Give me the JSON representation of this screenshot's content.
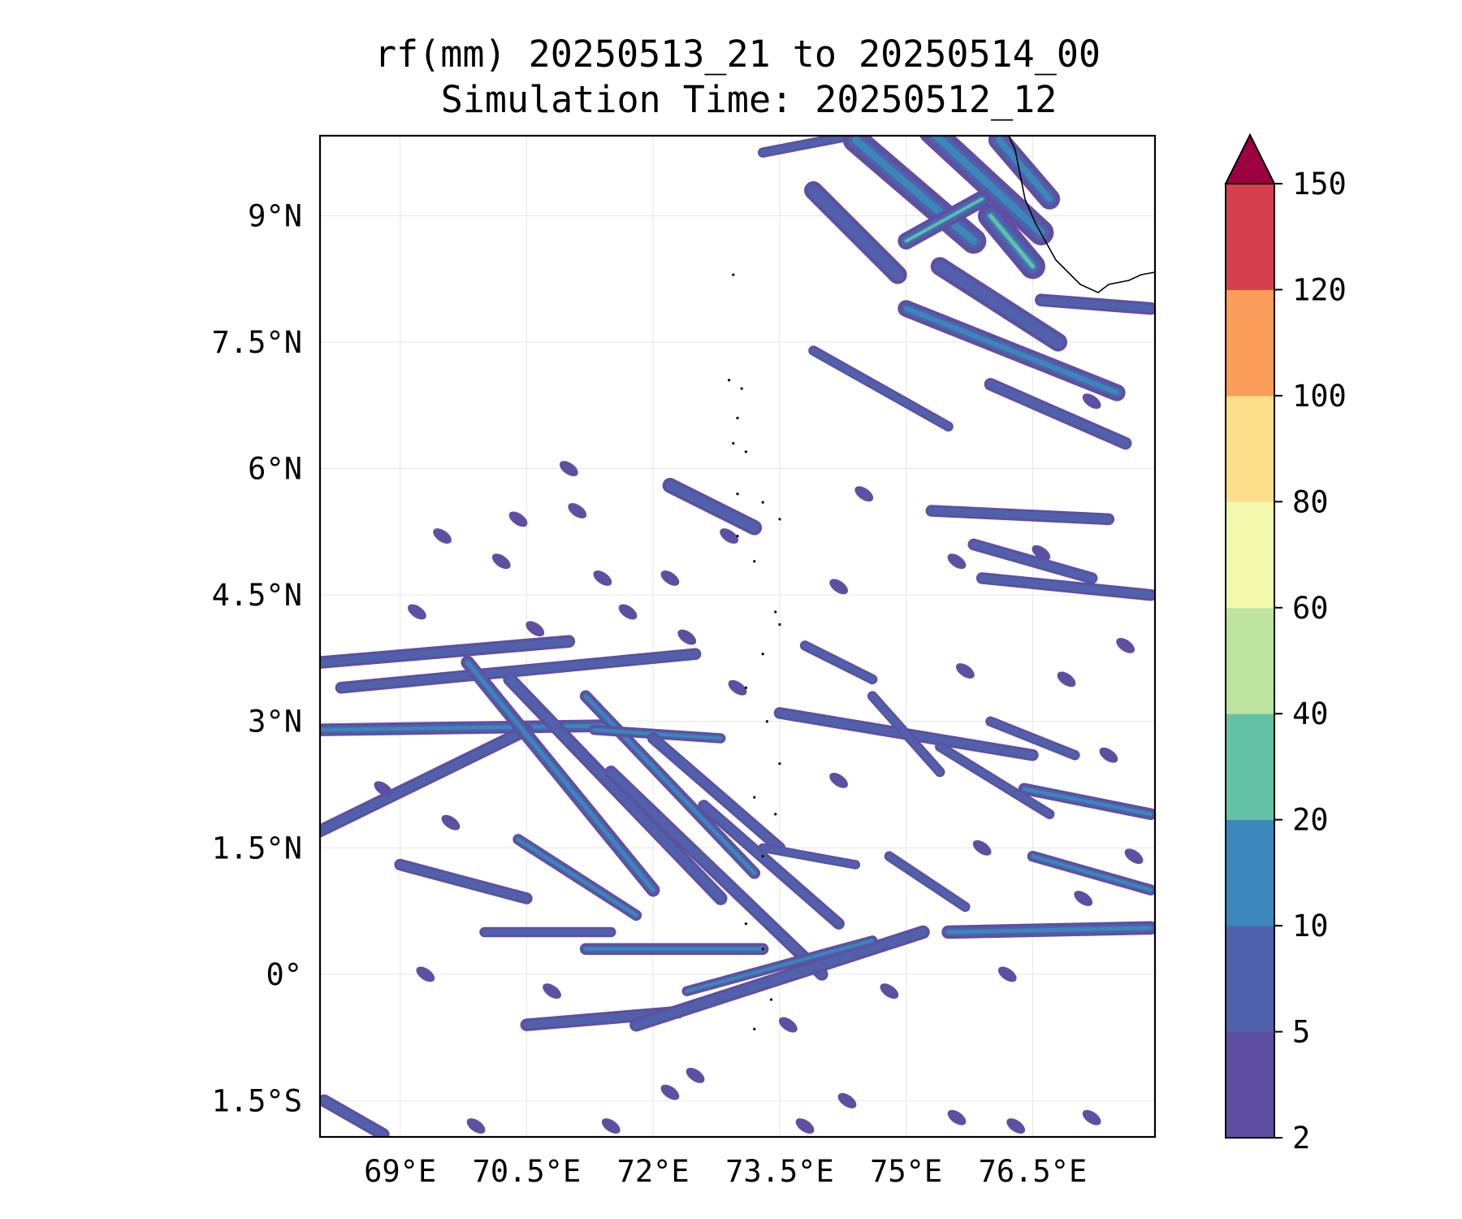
{
  "chart_data": {
    "type": "heatmap",
    "variable": "rf(mm)",
    "title_line1": "rf(mm) 20250513_21 to 20250514_00",
    "title_line2": "Simulation Time: 20250512_12",
    "x_ticks": [
      69,
      70.5,
      72,
      73.5,
      75,
      76.5
    ],
    "x_tick_labels": [
      "69°E",
      "70.5°E",
      "72°E",
      "73.5°E",
      "75°E",
      "76.5°E"
    ],
    "y_ticks": [
      9,
      7.5,
      6,
      4.5,
      3,
      1.5,
      0,
      -1.5
    ],
    "y_tick_labels": [
      "9°N",
      "7.5°N",
      "6°N",
      "4.5°N",
      "3°N",
      "1.5°N",
      "0°",
      "1.5°S"
    ],
    "xlim": [
      68.05,
      77.95
    ],
    "ylim": [
      -1.93,
      9.95
    ],
    "grid": true,
    "colorbar": {
      "levels": [
        2,
        5,
        10,
        20,
        40,
        60,
        80,
        100,
        120,
        150
      ],
      "tick_labels": [
        "2",
        "5",
        "10",
        "20",
        "40",
        "60",
        "80",
        "100",
        "120",
        "150"
      ],
      "colors": [
        "#5e4fa2",
        "#4f61aa",
        "#3b86bb",
        "#65c1a5",
        "#bde4a0",
        "#f3f9ac",
        "#fbdf8b",
        "#f99d58",
        "#d6404e"
      ],
      "extend_color": "#9e0142",
      "extend": "max"
    },
    "rain_bands": [
      {
        "lon1": 73.3,
        "lat1": 9.75,
        "lon2": 74.6,
        "lat2": 10.0,
        "w": 0.12,
        "lvl": 1
      },
      {
        "lon1": 73.9,
        "lat1": 9.3,
        "lon2": 74.9,
        "lat2": 8.3,
        "w": 0.22,
        "lvl": 1
      },
      {
        "lon1": 74.4,
        "lat1": 9.9,
        "lon2": 75.8,
        "lat2": 8.7,
        "w": 0.3,
        "lvl": 2
      },
      {
        "lon1": 75.3,
        "lat1": 10.0,
        "lon2": 76.6,
        "lat2": 8.8,
        "w": 0.3,
        "lvl": 2
      },
      {
        "lon1": 76.0,
        "lat1": 9.0,
        "lon2": 76.5,
        "lat2": 8.4,
        "w": 0.3,
        "lvl": 3
      },
      {
        "lon1": 76.1,
        "lat1": 9.9,
        "lon2": 76.7,
        "lat2": 9.2,
        "w": 0.25,
        "lvl": 2
      },
      {
        "lon1": 75.0,
        "lat1": 8.7,
        "lon2": 75.9,
        "lat2": 9.2,
        "w": 0.2,
        "lvl": 3
      },
      {
        "lon1": 75.4,
        "lat1": 8.4,
        "lon2": 76.8,
        "lat2": 7.5,
        "w": 0.22,
        "lvl": 1
      },
      {
        "lon1": 75.0,
        "lat1": 7.9,
        "lon2": 77.5,
        "lat2": 6.9,
        "w": 0.2,
        "lvl": 2
      },
      {
        "lon1": 76.6,
        "lat1": 8.0,
        "lon2": 77.9,
        "lat2": 7.9,
        "w": 0.15,
        "lvl": 1
      },
      {
        "lon1": 76.0,
        "lat1": 7.0,
        "lon2": 77.6,
        "lat2": 6.3,
        "w": 0.15,
        "lvl": 1
      },
      {
        "lon1": 73.9,
        "lat1": 7.4,
        "lon2": 75.5,
        "lat2": 6.5,
        "w": 0.12,
        "lvl": 1
      },
      {
        "lon1": 72.2,
        "lat1": 5.8,
        "lon2": 73.2,
        "lat2": 5.3,
        "w": 0.18,
        "lvl": 1
      },
      {
        "lon1": 75.3,
        "lat1": 5.5,
        "lon2": 77.4,
        "lat2": 5.4,
        "w": 0.14,
        "lvl": 1
      },
      {
        "lon1": 75.8,
        "lat1": 5.1,
        "lon2": 77.2,
        "lat2": 4.7,
        "w": 0.14,
        "lvl": 1
      },
      {
        "lon1": 75.9,
        "lat1": 4.7,
        "lon2": 77.9,
        "lat2": 4.5,
        "w": 0.14,
        "lvl": 1
      },
      {
        "lon1": 68.05,
        "lat1": 3.7,
        "lon2": 71.0,
        "lat2": 3.95,
        "w": 0.15,
        "lvl": 1
      },
      {
        "lon1": 68.3,
        "lat1": 3.4,
        "lon2": 72.5,
        "lat2": 3.8,
        "w": 0.14,
        "lvl": 1
      },
      {
        "lon1": 68.05,
        "lat1": 2.9,
        "lon2": 71.5,
        "lat2": 2.95,
        "w": 0.15,
        "lvl": 2
      },
      {
        "lon1": 68.05,
        "lat1": 1.7,
        "lon2": 70.5,
        "lat2": 2.9,
        "w": 0.15,
        "lvl": 1
      },
      {
        "lon1": 69.8,
        "lat1": 3.7,
        "lon2": 72.0,
        "lat2": 1.0,
        "w": 0.16,
        "lvl": 2
      },
      {
        "lon1": 70.3,
        "lat1": 3.5,
        "lon2": 72.8,
        "lat2": 0.9,
        "w": 0.16,
        "lvl": 1
      },
      {
        "lon1": 71.2,
        "lat1": 3.3,
        "lon2": 73.2,
        "lat2": 1.2,
        "w": 0.14,
        "lvl": 2
      },
      {
        "lon1": 71.5,
        "lat1": 2.4,
        "lon2": 74.0,
        "lat2": 0.0,
        "w": 0.15,
        "lvl": 1
      },
      {
        "lon1": 72.6,
        "lat1": 2.0,
        "lon2": 74.2,
        "lat2": 0.6,
        "w": 0.14,
        "lvl": 1
      },
      {
        "lon1": 71.3,
        "lat1": 2.9,
        "lon2": 72.8,
        "lat2": 2.8,
        "w": 0.12,
        "lvl": 2
      },
      {
        "lon1": 72.0,
        "lat1": 2.8,
        "lon2": 73.5,
        "lat2": 1.5,
        "w": 0.14,
        "lvl": 1
      },
      {
        "lon1": 69.0,
        "lat1": 1.3,
        "lon2": 70.5,
        "lat2": 0.9,
        "w": 0.14,
        "lvl": 1
      },
      {
        "lon1": 70.4,
        "lat1": 1.6,
        "lon2": 71.8,
        "lat2": 0.7,
        "w": 0.13,
        "lvl": 2
      },
      {
        "lon1": 71.2,
        "lat1": 0.3,
        "lon2": 73.3,
        "lat2": 0.3,
        "w": 0.14,
        "lvl": 2
      },
      {
        "lon1": 70.0,
        "lat1": 0.5,
        "lon2": 71.5,
        "lat2": 0.5,
        "w": 0.12,
        "lvl": 1
      },
      {
        "lon1": 70.5,
        "lat1": -0.6,
        "lon2": 72.3,
        "lat2": -0.45,
        "w": 0.15,
        "lvl": 1
      },
      {
        "lon1": 71.8,
        "lat1": -0.6,
        "lon2": 75.2,
        "lat2": 0.5,
        "w": 0.16,
        "lvl": 1
      },
      {
        "lon1": 72.4,
        "lat1": -0.2,
        "lon2": 74.6,
        "lat2": 0.4,
        "w": 0.12,
        "lvl": 2
      },
      {
        "lon1": 75.5,
        "lat1": 0.5,
        "lon2": 77.9,
        "lat2": 0.55,
        "w": 0.16,
        "lvl": 2
      },
      {
        "lon1": 73.5,
        "lat1": 3.1,
        "lon2": 76.5,
        "lat2": 2.6,
        "w": 0.14,
        "lvl": 1
      },
      {
        "lon1": 73.8,
        "lat1": 3.9,
        "lon2": 74.6,
        "lat2": 3.5,
        "w": 0.12,
        "lvl": 1
      },
      {
        "lon1": 74.6,
        "lat1": 3.3,
        "lon2": 75.4,
        "lat2": 2.4,
        "w": 0.12,
        "lvl": 1
      },
      {
        "lon1": 75.4,
        "lat1": 2.7,
        "lon2": 76.7,
        "lat2": 1.9,
        "w": 0.12,
        "lvl": 1
      },
      {
        "lon1": 76.4,
        "lat1": 2.2,
        "lon2": 77.9,
        "lat2": 1.9,
        "w": 0.14,
        "lvl": 2
      },
      {
        "lon1": 73.3,
        "lat1": 1.5,
        "lon2": 74.4,
        "lat2": 1.3,
        "w": 0.11,
        "lvl": 1
      },
      {
        "lon1": 74.8,
        "lat1": 1.4,
        "lon2": 75.7,
        "lat2": 0.8,
        "w": 0.12,
        "lvl": 1
      },
      {
        "lon1": 76.5,
        "lat1": 1.4,
        "lon2": 77.9,
        "lat2": 1.0,
        "w": 0.13,
        "lvl": 2
      },
      {
        "lon1": 76.0,
        "lat1": 3.0,
        "lon2": 77.0,
        "lat2": 2.6,
        "w": 0.12,
        "lvl": 1
      },
      {
        "lon1": 68.1,
        "lat1": -1.5,
        "lon2": 68.8,
        "lat2": -1.9,
        "w": 0.15,
        "lvl": 1
      }
    ],
    "rain_cells": [
      {
        "lon": 70.4,
        "lat": 5.4
      },
      {
        "lon": 71.1,
        "lat": 5.5
      },
      {
        "lon": 69.5,
        "lat": 5.2
      },
      {
        "lon": 70.2,
        "lat": 4.9
      },
      {
        "lon": 71.4,
        "lat": 4.7
      },
      {
        "lon": 72.9,
        "lat": 5.2
      },
      {
        "lon": 74.5,
        "lat": 5.7
      },
      {
        "lon": 75.6,
        "lat": 4.9
      },
      {
        "lon": 74.2,
        "lat": 4.6
      },
      {
        "lon": 76.6,
        "lat": 5.0
      },
      {
        "lon": 69.2,
        "lat": 4.3
      },
      {
        "lon": 70.6,
        "lat": 4.1
      },
      {
        "lon": 71.7,
        "lat": 4.3
      },
      {
        "lon": 72.4,
        "lat": 4.0
      },
      {
        "lon": 75.7,
        "lat": 3.6
      },
      {
        "lon": 76.9,
        "lat": 3.5
      },
      {
        "lon": 77.6,
        "lat": 3.9
      },
      {
        "lon": 74.2,
        "lat": 2.3
      },
      {
        "lon": 75.9,
        "lat": 1.5
      },
      {
        "lon": 77.1,
        "lat": 0.9
      },
      {
        "lon": 76.2,
        "lat": 0.0
      },
      {
        "lon": 74.8,
        "lat": -0.2
      },
      {
        "lon": 73.6,
        "lat": -0.6
      },
      {
        "lon": 72.5,
        "lat": -1.2
      },
      {
        "lon": 74.3,
        "lat": -1.5
      },
      {
        "lon": 69.3,
        "lat": 0.0
      },
      {
        "lon": 70.8,
        "lat": -0.2
      },
      {
        "lon": 68.8,
        "lat": 2.2
      },
      {
        "lon": 69.6,
        "lat": 1.8
      },
      {
        "lon": 77.4,
        "lat": 2.6
      },
      {
        "lon": 77.7,
        "lat": 1.4
      },
      {
        "lon": 72.2,
        "lat": 4.7
      },
      {
        "lon": 69.9,
        "lat": -1.8
      },
      {
        "lon": 71.5,
        "lat": -1.8
      },
      {
        "lon": 75.6,
        "lat": -1.7
      },
      {
        "lon": 77.2,
        "lat": -1.7
      },
      {
        "lon": 76.3,
        "lat": -1.8
      },
      {
        "lon": 73.8,
        "lat": -1.8
      },
      {
        "lon": 72.2,
        "lat": -1.4
      },
      {
        "lon": 73.0,
        "lat": 3.4
      },
      {
        "lon": 71.0,
        "lat": 6.0
      },
      {
        "lon": 77.2,
        "lat": 6.8
      }
    ]
  }
}
